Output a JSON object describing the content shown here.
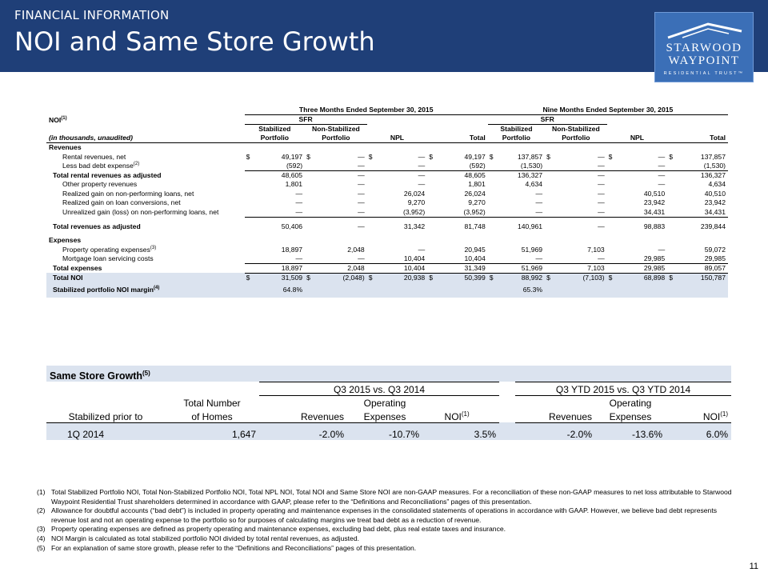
{
  "header": {
    "kicker": "FINANCIAL INFORMATION",
    "title": "NOI and Same Store Growth",
    "logo": {
      "line1": "STARWOOD",
      "line2": "WAYPOINT",
      "line3": "RESIDENTIAL TRUST™",
      "icon": "roof-icon"
    },
    "colors": {
      "band": "#1f3f78",
      "logo": "#3b6fb7",
      "shade": "#dbe3ef"
    }
  },
  "noi_table": {
    "period_3m": "Three Months Ended September 30, 2015",
    "period_9m": "Nine Months Ended September 30,  2015",
    "noi_label": "NOI",
    "noi_sup": "(1)",
    "sfr": "SFR",
    "units": "(in thousands, unaudited)",
    "col_stab_1": "Stabilized",
    "col_stab_2": "Portfolio",
    "col_nonstab_1": "Non-Stabilized",
    "col_nonstab_2": "Portfolio",
    "col_npl": "NPL",
    "col_total": "Total",
    "dollar": "$",
    "sections": {
      "revenues": "Revenues",
      "expenses": "Expenses"
    },
    "rows": {
      "rental": {
        "label": "Rental revenues, net",
        "v": [
          "49,197",
          "—",
          "—",
          "49,197",
          "137,857",
          "—",
          "—",
          "137,857"
        ]
      },
      "baddebt": {
        "label": "Less bad debt expense",
        "sup": "(2)",
        "v": [
          "(592)",
          "—",
          "—",
          "(592)",
          "(1,530)",
          "—",
          "—",
          "(1,530)"
        ]
      },
      "total_rental": {
        "label": "Total rental revenues as adjusted",
        "v": [
          "48,605",
          "—",
          "—",
          "48,605",
          "136,327",
          "—",
          "—",
          "136,327"
        ]
      },
      "other": {
        "label": "Other property revenues",
        "v": [
          "1,801",
          "—",
          "—",
          "1,801",
          "4,634",
          "—",
          "—",
          "4,634"
        ]
      },
      "realized_npl": {
        "label": "Realized gain on non-performing loans, net",
        "v": [
          "—",
          "—",
          "26,024",
          "26,024",
          "—",
          "—",
          "40,510",
          "40,510"
        ]
      },
      "realized_conv": {
        "label": "Realized gain on loan conversions, net",
        "v": [
          "—",
          "—",
          "9,270",
          "9,270",
          "—",
          "—",
          "23,942",
          "23,942"
        ]
      },
      "unrealized": {
        "label": "Unrealized gain (loss) on non-performing loans, net",
        "v": [
          "—",
          "—",
          "(3,952)",
          "(3,952)",
          "—",
          "—",
          "34,431",
          "34,431"
        ]
      },
      "total_rev": {
        "label": "Total revenues as adjusted",
        "v": [
          "50,406",
          "—",
          "31,342",
          "81,748",
          "140,961",
          "—",
          "98,883",
          "239,844"
        ]
      },
      "opex": {
        "label": "Property operating expenses",
        "sup": "(3)",
        "v": [
          "18,897",
          "2,048",
          "—",
          "20,945",
          "51,969",
          "7,103",
          "—",
          "59,072"
        ]
      },
      "mortgage": {
        "label": "Mortgage loan servicing costs",
        "v": [
          "—",
          "—",
          "10,404",
          "10,404",
          "—",
          "—",
          "29,985",
          "29,985"
        ]
      },
      "total_exp": {
        "label": "Total expenses",
        "v": [
          "18,897",
          "2,048",
          "10,404",
          "31,349",
          "51,969",
          "7,103",
          "29,985",
          "89,057"
        ]
      },
      "total_noi": {
        "label": "Total NOI",
        "v": [
          "31,509",
          "(2,048)",
          "20,938",
          "50,399",
          "88,992",
          "(7,103)",
          "68,898",
          "150,787"
        ]
      },
      "margin": {
        "label": "Stabilized portfolio NOI margin",
        "sup": "(4)",
        "v3": "64.8%",
        "v9": "65.3%"
      }
    }
  },
  "same_store": {
    "title": "Same Store Growth",
    "title_sup": "(5)",
    "period_q": "Q3 2015 vs. Q3 2014",
    "period_ytd": "Q3 YTD 2015 vs. Q3 YTD 2014",
    "col_stab": "Stabilized prior to",
    "col_homes_1": "Total Number",
    "col_homes_2": "of Homes",
    "col_rev": "Revenues",
    "col_opex_1": "Operating",
    "col_opex_2": "Expenses",
    "col_noi": "NOI",
    "col_noi_sup": "(1)",
    "row": {
      "stab": "1Q 2014",
      "homes": "1,647",
      "q_rev": "-2.0%",
      "q_exp": "-10.7%",
      "q_noi": "3.5%",
      "y_rev": "-2.0%",
      "y_exp": "-13.6%",
      "y_noi": "6.0%"
    }
  },
  "footnotes": [
    {
      "n": "(1)",
      "t": "Total Stabilized Portfolio NOI, Total Non-Stabilized Portfolio NOI, Total  NPL NOI, Total NOI and Same Store NOI are non-GAAP measures. For a reconciliation of these non-GAAP measures to net loss attributable to Starwood Waypoint Residential Trust shareholders determined in accordance with GAAP, please refer to the “Definitions and Reconciliations” pages of this presentation."
    },
    {
      "n": "(2)",
      "t": "Allowance for doubtful accounts (“bad debt”) is included in property operating and maintenance expenses in the consolidated statements of operations in accordance with GAAP.  However, we believe bad debt represents revenue lost and not an operating expense to the portfolio so for purposes of calculating margins we treat bad debt as a reduction of revenue."
    },
    {
      "n": "(3)",
      "t": "Property operating expenses are defined as property operating and maintenance expenses, excluding bad debt, plus real estate taxes and insurance."
    },
    {
      "n": "(4)",
      "t": "NOI Margin is calculated as total stabilized portfolio NOI divided by total rental revenues, as adjusted."
    },
    {
      "n": "(5)",
      "t": "For an explanation of same store growth, please refer to the “Definitions and Reconciliations” pages of this presentation."
    }
  ],
  "page_number": "11"
}
